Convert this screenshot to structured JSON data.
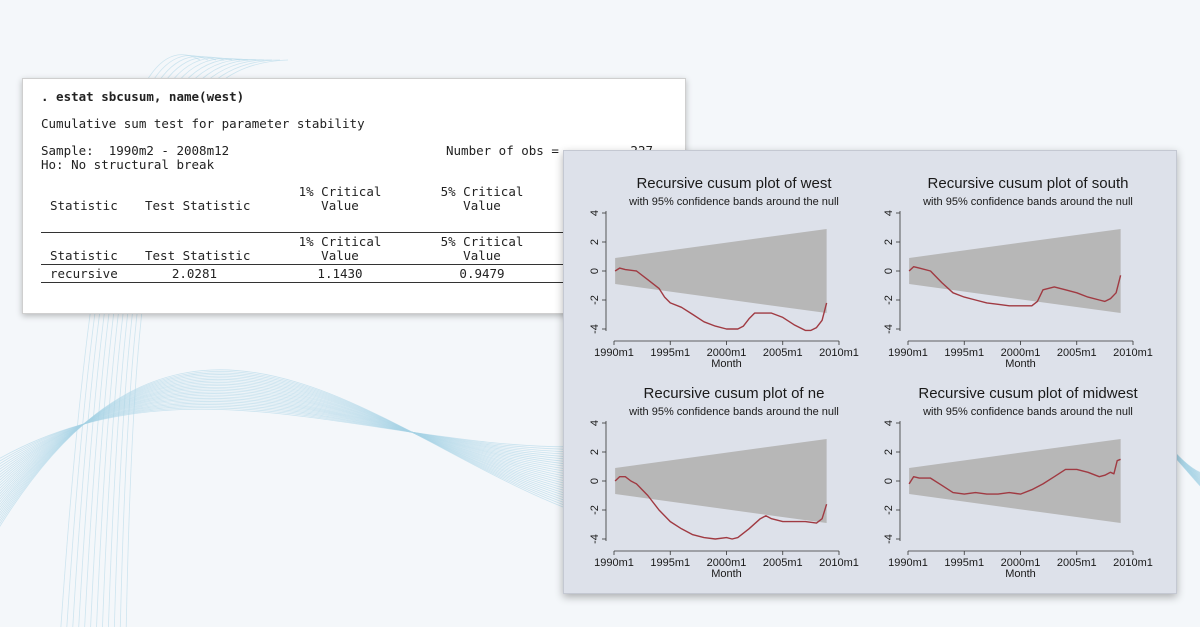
{
  "background": {
    "accent": "#a8d3e6"
  },
  "console": {
    "command": ". estat sbcusum, name(west)",
    "heading": "Cumulative sum test for parameter stability",
    "sample": "Sample:  1990m2 - 2008m12",
    "obs_label": "Number of obs =",
    "obs_value": "227",
    "hypothesis": "Ho: No structural break",
    "columns": {
      "statistic": "Statistic",
      "test_statistic": "Test Statistic",
      "crit1": [
        "1% Critical",
        "Value"
      ],
      "crit5": [
        "5% Critical",
        "Value"
      ]
    },
    "row": {
      "statistic": "recursive",
      "test_statistic": "2.0281",
      "crit1": "1.1430",
      "crit5": "0.9479"
    }
  },
  "graph": {
    "background": "#dde1ea",
    "band_color": "#b7b7b7",
    "line_color": "#a03a42"
  },
  "chart_data": [
    {
      "type": "line",
      "title": "Recursive cusum plot of west",
      "subtitle": "with 95% confidence bands around the null",
      "xlabel": "Month",
      "ylabel": "",
      "xlim": [
        1990,
        2010
      ],
      "ylim": [
        -4,
        4
      ],
      "x_ticks": [
        "1990m1",
        "1995m1",
        "2000m1",
        "2005m1",
        "2010m1"
      ],
      "y_ticks": [
        "-4",
        "-2",
        "0",
        "2",
        "4"
      ],
      "band": {
        "x": [
          1990.1,
          2008.9
        ],
        "upper": [
          0.9,
          2.9
        ],
        "lower": [
          -0.9,
          -2.9
        ]
      },
      "series": [
        {
          "x": [
            1990.1,
            1990.5,
            1991,
            1992,
            1993,
            1994,
            1994.5,
            1995,
            1996,
            1997,
            1998,
            1999,
            2000,
            2001,
            2001.5,
            2002,
            2002.5,
            2003,
            2004,
            2005,
            2006,
            2007,
            2007.5,
            2008,
            2008.5,
            2008.9
          ],
          "values": [
            0,
            0.2,
            0.1,
            0,
            -0.6,
            -1.2,
            -1.8,
            -2.2,
            -2.5,
            -3.0,
            -3.5,
            -3.8,
            -4.0,
            -4.0,
            -3.8,
            -3.3,
            -2.9,
            -2.9,
            -2.9,
            -3.2,
            -3.7,
            -4.1,
            -4.1,
            -3.9,
            -3.4,
            -2.2
          ]
        }
      ]
    },
    {
      "type": "line",
      "title": "Recursive cusum plot of south",
      "subtitle": "with 95% confidence bands around the null",
      "xlabel": "Month",
      "ylabel": "",
      "xlim": [
        1990,
        2010
      ],
      "ylim": [
        -4,
        4
      ],
      "x_ticks": [
        "1990m1",
        "1995m1",
        "2000m1",
        "2005m1",
        "2010m1"
      ],
      "y_ticks": [
        "-4",
        "-2",
        "0",
        "2",
        "4"
      ],
      "band": {
        "x": [
          1990.1,
          2008.9
        ],
        "upper": [
          0.9,
          2.9
        ],
        "lower": [
          -0.9,
          -2.9
        ]
      },
      "series": [
        {
          "x": [
            1990.1,
            1990.5,
            1991,
            1992,
            1993,
            1994,
            1995,
            1996,
            1997,
            1998,
            1999,
            2000,
            2001,
            2001.5,
            2002,
            2003,
            2004,
            2005,
            2006,
            2007,
            2007.5,
            2008,
            2008.5,
            2008.9
          ],
          "values": [
            0,
            0.3,
            0.2,
            0,
            -0.8,
            -1.5,
            -1.8,
            -2.0,
            -2.2,
            -2.3,
            -2.4,
            -2.4,
            -2.4,
            -2.1,
            -1.3,
            -1.1,
            -1.3,
            -1.5,
            -1.8,
            -2.0,
            -2.1,
            -1.9,
            -1.5,
            -0.3
          ]
        }
      ]
    },
    {
      "type": "line",
      "title": "Recursive cusum plot of ne",
      "subtitle": "with 95% confidence bands around the null",
      "xlabel": "Month",
      "ylabel": "",
      "xlim": [
        1990,
        2010
      ],
      "ylim": [
        -4,
        4
      ],
      "x_ticks": [
        "1990m1",
        "1995m1",
        "2000m1",
        "2005m1",
        "2010m1"
      ],
      "y_ticks": [
        "-4",
        "-2",
        "0",
        "2",
        "4"
      ],
      "band": {
        "x": [
          1990.1,
          2008.9
        ],
        "upper": [
          0.9,
          2.9
        ],
        "lower": [
          -0.9,
          -2.9
        ]
      },
      "series": [
        {
          "x": [
            1990.1,
            1990.5,
            1991,
            1991.5,
            1992,
            1993,
            1994,
            1995,
            1996,
            1997,
            1998,
            1999,
            2000,
            2000.5,
            2001,
            2002,
            2003,
            2003.5,
            2004,
            2005,
            2006,
            2007,
            2008,
            2008.5,
            2008.9
          ],
          "values": [
            0,
            0.3,
            0.3,
            0,
            -0.2,
            -1.0,
            -2.0,
            -2.8,
            -3.3,
            -3.7,
            -3.9,
            -4.0,
            -3.9,
            -4.0,
            -3.9,
            -3.3,
            -2.6,
            -2.4,
            -2.6,
            -2.8,
            -2.8,
            -2.8,
            -2.9,
            -2.6,
            -1.6
          ]
        }
      ]
    },
    {
      "type": "line",
      "title": "Recursive cusum plot of midwest",
      "subtitle": "with 95% confidence bands around the null",
      "xlabel": "Month",
      "ylabel": "",
      "xlim": [
        1990,
        2010
      ],
      "ylim": [
        -4,
        4
      ],
      "x_ticks": [
        "1990m1",
        "1995m1",
        "2000m1",
        "2005m1",
        "2010m1"
      ],
      "y_ticks": [
        "-4",
        "-2",
        "0",
        "2",
        "4"
      ],
      "band": {
        "x": [
          1990.1,
          2008.9
        ],
        "upper": [
          0.9,
          2.9
        ],
        "lower": [
          -0.9,
          -2.9
        ]
      },
      "series": [
        {
          "x": [
            1990.1,
            1990.5,
            1991,
            1992,
            1993,
            1994,
            1995,
            1996,
            1997,
            1998,
            1999,
            2000,
            2001,
            2002,
            2003,
            2004,
            2005,
            2006,
            2007,
            2007.5,
            2008,
            2008.3,
            2008.6,
            2008.9
          ],
          "values": [
            -0.2,
            0.3,
            0.2,
            0.2,
            -0.3,
            -0.8,
            -0.9,
            -0.8,
            -0.9,
            -0.9,
            -0.8,
            -0.9,
            -0.6,
            -0.2,
            0.3,
            0.8,
            0.8,
            0.6,
            0.3,
            0.4,
            0.6,
            0.5,
            1.4,
            1.5
          ]
        }
      ]
    }
  ]
}
